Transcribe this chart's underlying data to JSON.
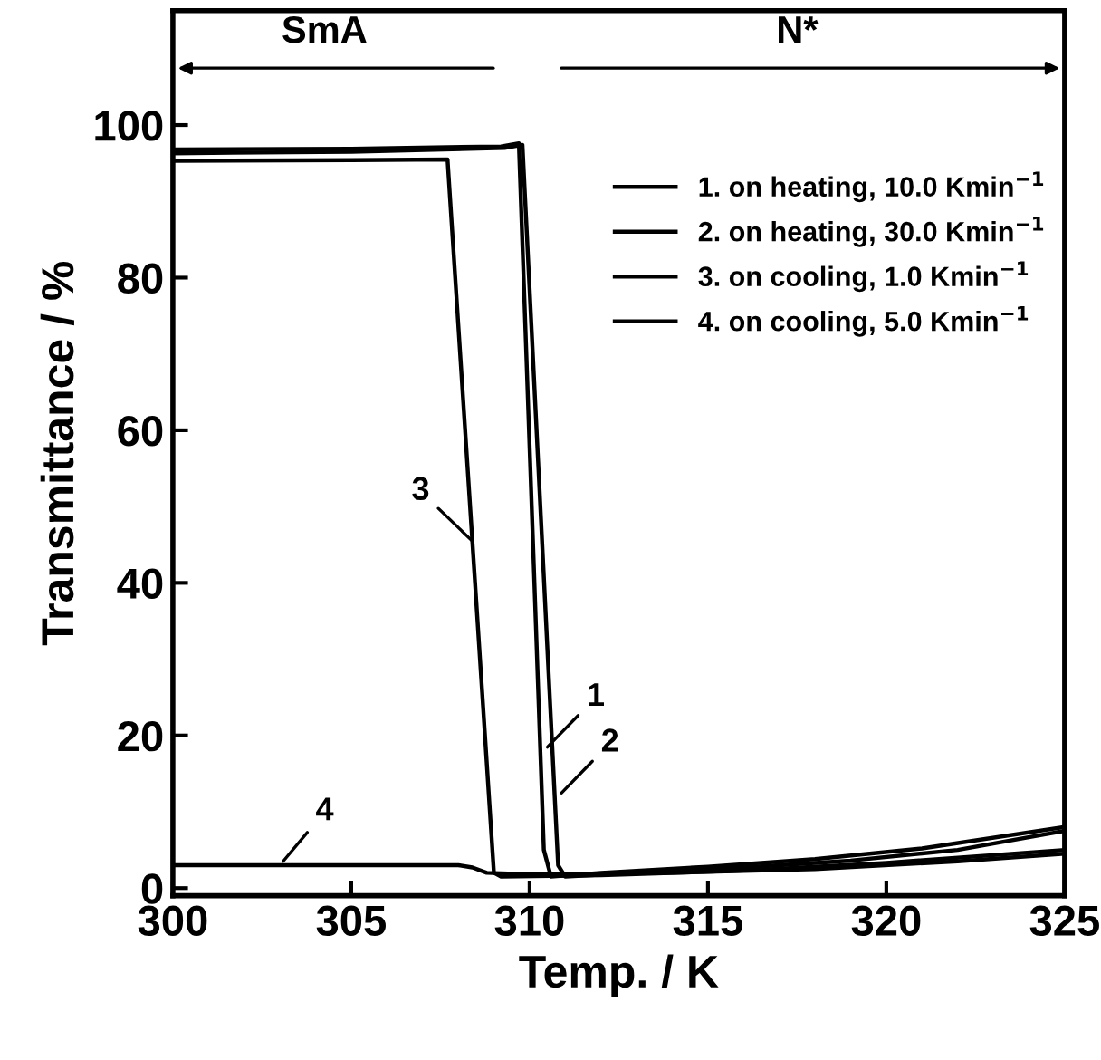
{
  "chart_data": {
    "type": "line",
    "xlabel": "Temp. / K",
    "ylabel": "Transmittance / %",
    "xlim": [
      300,
      325
    ],
    "ylim": [
      -1,
      115
    ],
    "xticks": [
      300,
      305,
      310,
      315,
      320,
      325
    ],
    "yticks": [
      0,
      20,
      40,
      60,
      80,
      100
    ],
    "legend": "upper right",
    "grid": false,
    "line_style": "solid",
    "marker": "none",
    "series": [
      {
        "name": "1. on heating, 10.0 Kmin$^{−1}$",
        "color": "#000000",
        "x": [
          300,
          305,
          309.2,
          309.7,
          310.4,
          310.6,
          312,
          315,
          318,
          321,
          325
        ],
        "values": [
          96.8,
          96.9,
          97.2,
          97.6,
          5,
          1.5,
          2,
          2.8,
          3.8,
          5.2,
          8
        ]
      },
      {
        "name": "2. on heating, 30.0 Kmin$^{−1}$",
        "color": "#000000",
        "x": [
          300,
          305,
          309.3,
          309.8,
          310.8,
          311,
          313,
          316,
          319,
          322,
          325
        ],
        "values": [
          96.3,
          96.5,
          97,
          97.4,
          3,
          1.5,
          2,
          2.7,
          3.6,
          5,
          7.5
        ]
      },
      {
        "name": "3. on cooling, 1.0 Kmin$^{−1}$",
        "color": "#000000",
        "x": [
          300,
          305,
          307.7,
          309.0,
          309.2,
          312,
          316,
          320,
          325
        ],
        "values": [
          95.3,
          95.4,
          95.5,
          2,
          1.5,
          1.7,
          2.3,
          3.3,
          5
        ]
      },
      {
        "name": "4. on cooling, 5.0 Kmin$^{−1}$",
        "color": "#000000",
        "x": [
          300,
          304,
          308,
          308.4,
          308.8,
          310,
          314,
          318,
          322,
          325
        ],
        "values": [
          3,
          3,
          3,
          2.7,
          2,
          1.8,
          2,
          2.5,
          3.5,
          4.5
        ]
      }
    ],
    "annotations": [
      "SmA",
      "N*",
      {
        "text": "1",
        "x": 310.4,
        "y": 18
      },
      {
        "text": "2",
        "x": 310.8,
        "y": 12
      },
      {
        "text": "3",
        "x": 308.5,
        "y": 45
      },
      {
        "text": "4",
        "x": 303,
        "y": 3
      }
    ]
  }
}
